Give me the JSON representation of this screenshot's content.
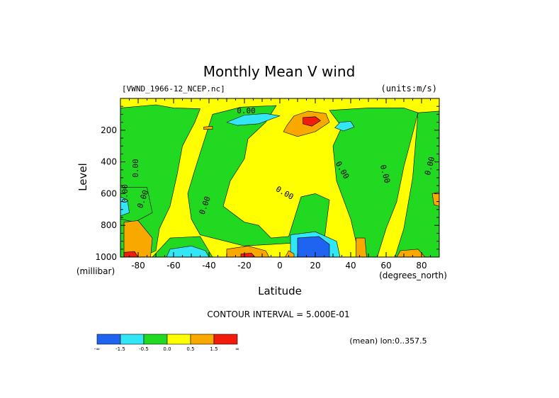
{
  "chart_data": {
    "type": "contour",
    "title": "Monthly Mean V wind",
    "dataset_label": "[VWND_1966-12_NCEP.nc]",
    "units_label": "(units:m/s)",
    "xlabel": "Latitude",
    "x_unit_label": "(degrees_north)",
    "ylabel": "Level",
    "y_unit_label": "(millibar)",
    "xlim": [
      -90,
      90
    ],
    "ylim": [
      1000,
      0
    ],
    "x_ticks": [
      -80,
      -60,
      -40,
      -20,
      0,
      20,
      40,
      60,
      80
    ],
    "y_ticks": [
      200,
      400,
      600,
      800,
      1000
    ],
    "contour_interval_text": "CONTOUR INTERVAL = 5.000E-01",
    "mean_note": "(mean) lon:0..357.5",
    "contour_labels": [
      "0.00",
      "0.00",
      "0.00",
      "0.00",
      "0.00",
      "0.00",
      "0.00",
      "0.00",
      "0.00"
    ],
    "colorbar": {
      "colors": [
        "#1f64f0",
        "#33e6f5",
        "#22d922",
        "#ffff00",
        "#f9a800",
        "#f21b0c"
      ],
      "tick_labels": [
        "-∞",
        "-1.5",
        "-0.5",
        "0.0",
        "0.5",
        "1.5",
        "∞"
      ]
    },
    "regions": [
      {
        "fill": "#22d922",
        "points": [
          [
            -90,
            60
          ],
          [
            -70,
            40
          ],
          [
            -60,
            60
          ],
          [
            -45,
            65
          ],
          [
            -48,
            150
          ],
          [
            -55,
            300
          ],
          [
            -58,
            480
          ],
          [
            -62,
            680
          ],
          [
            -68,
            820
          ],
          [
            -70,
            960
          ],
          [
            -78,
            1000
          ],
          [
            -90,
            1000
          ]
        ]
      },
      {
        "fill": "#22d922",
        "points": [
          [
            -22,
            55
          ],
          [
            -2,
            45
          ],
          [
            -8,
            150
          ],
          [
            -18,
            255
          ],
          [
            -20,
            380
          ],
          [
            -28,
            520
          ],
          [
            -32,
            680
          ],
          [
            -20,
            780
          ],
          [
            -12,
            800
          ],
          [
            -5,
            880
          ],
          [
            5,
            870
          ],
          [
            12,
            620
          ],
          [
            20,
            600
          ],
          [
            28,
            640
          ],
          [
            25,
            900
          ],
          [
            -20,
            930
          ],
          [
            -45,
            860
          ],
          [
            -50,
            760
          ],
          [
            -52,
            600
          ],
          [
            -48,
            450
          ],
          [
            -42,
            240
          ],
          [
            -38,
            100
          ]
        ]
      },
      {
        "fill": "#22d922",
        "points": [
          [
            28,
            75
          ],
          [
            50,
            60
          ],
          [
            70,
            60
          ],
          [
            78,
            90
          ],
          [
            75,
            220
          ],
          [
            70,
            430
          ],
          [
            66,
            650
          ],
          [
            60,
            820
          ],
          [
            55,
            1000
          ],
          [
            45,
            1000
          ],
          [
            40,
            760
          ],
          [
            32,
            520
          ],
          [
            30,
            300
          ],
          [
            35,
            180
          ]
        ]
      },
      {
        "fill": "#22d922",
        "points": [
          [
            -90,
            560
          ],
          [
            -75,
            560
          ],
          [
            -72,
            720
          ],
          [
            -82,
            780
          ],
          [
            -90,
            760
          ]
        ]
      },
      {
        "fill": "#22d922",
        "points": [
          [
            78,
            90
          ],
          [
            90,
            80
          ],
          [
            90,
            1000
          ],
          [
            65,
            1000
          ],
          [
            70,
            820
          ],
          [
            75,
            500
          ]
        ]
      },
      {
        "fill": "#22d922",
        "points": [
          [
            -62,
            880
          ],
          [
            -45,
            870
          ],
          [
            -38,
            1000
          ],
          [
            -72,
            1000
          ]
        ]
      },
      {
        "fill": "#33e6f5",
        "points": [
          [
            -20,
            105
          ],
          [
            -8,
            95
          ],
          [
            0,
            110
          ],
          [
            -12,
            160
          ],
          [
            -24,
            170
          ],
          [
            -30,
            150
          ]
        ]
      },
      {
        "fill": "#33e6f5",
        "points": [
          [
            34,
            150
          ],
          [
            40,
            145
          ],
          [
            42,
            180
          ],
          [
            36,
            205
          ],
          [
            31,
            185
          ]
        ]
      },
      {
        "fill": "#33e6f5",
        "points": [
          [
            -62,
            950
          ],
          [
            -50,
            930
          ],
          [
            -42,
            960
          ],
          [
            -40,
            1000
          ],
          [
            -64,
            1000
          ]
        ]
      },
      {
        "fill": "#33e6f5",
        "points": [
          [
            6,
            860
          ],
          [
            20,
            840
          ],
          [
            32,
            900
          ],
          [
            34,
            1000
          ],
          [
            6,
            1000
          ]
        ]
      },
      {
        "fill": "#33e6f5",
        "points": [
          [
            -90,
            620
          ],
          [
            -86,
            640
          ],
          [
            -85,
            720
          ],
          [
            -90,
            740
          ]
        ]
      },
      {
        "fill": "#1f64f0",
        "points": [
          [
            10,
            880
          ],
          [
            22,
            870
          ],
          [
            28,
            920
          ],
          [
            28,
            1000
          ],
          [
            10,
            1000
          ]
        ]
      },
      {
        "fill": "#f9a800",
        "points": [
          [
            8,
            110
          ],
          [
            16,
            80
          ],
          [
            26,
            95
          ],
          [
            28,
            150
          ],
          [
            20,
            210
          ],
          [
            10,
            240
          ],
          [
            2,
            210
          ],
          [
            4,
            170
          ]
        ]
      },
      {
        "fill": "#f9a800",
        "points": [
          [
            -43,
            180
          ],
          [
            -38,
            175
          ],
          [
            -38,
            195
          ],
          [
            -43,
            195
          ]
        ]
      },
      {
        "fill": "#f9a800",
        "points": [
          [
            -88,
            780
          ],
          [
            -80,
            770
          ],
          [
            -72,
            880
          ],
          [
            -73,
            1000
          ],
          [
            -88,
            1000
          ]
        ]
      },
      {
        "fill": "#f9a800",
        "points": [
          [
            -30,
            950
          ],
          [
            -18,
            930
          ],
          [
            -8,
            960
          ],
          [
            -6,
            1000
          ],
          [
            -30,
            1000
          ]
        ]
      },
      {
        "fill": "#f9a800",
        "points": [
          [
            5,
            960
          ],
          [
            8,
            980
          ],
          [
            8,
            1000
          ],
          [
            3,
            1000
          ]
        ]
      },
      {
        "fill": "#f9a800",
        "points": [
          [
            43,
            880
          ],
          [
            48,
            880
          ],
          [
            49,
            1000
          ],
          [
            43,
            1000
          ]
        ]
      },
      {
        "fill": "#f9a800",
        "points": [
          [
            68,
            960
          ],
          [
            78,
            950
          ],
          [
            82,
            1000
          ],
          [
            66,
            1000
          ]
        ]
      },
      {
        "fill": "#f9a800",
        "points": [
          [
            86,
            600
          ],
          [
            90,
            590
          ],
          [
            90,
            680
          ],
          [
            87,
            670
          ]
        ]
      },
      {
        "fill": "#f21b0c",
        "points": [
          [
            13,
            120
          ],
          [
            20,
            115
          ],
          [
            23,
            140
          ],
          [
            18,
            175
          ],
          [
            13,
            160
          ]
        ]
      },
      {
        "fill": "#f21b0c",
        "points": [
          [
            -88,
            970
          ],
          [
            -82,
            965
          ],
          [
            -80,
            1000
          ],
          [
            -88,
            1000
          ]
        ]
      },
      {
        "fill": "#f21b0c",
        "points": [
          [
            -22,
            980
          ],
          [
            -16,
            975
          ],
          [
            -14,
            1000
          ],
          [
            -22,
            1000
          ]
        ]
      }
    ]
  }
}
